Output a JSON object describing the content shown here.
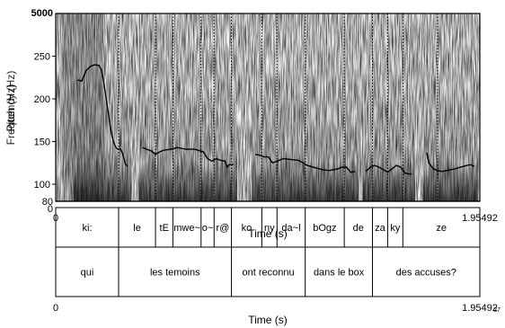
{
  "chart_data": {
    "type": "line",
    "title": "",
    "xlabel": "Time (s)",
    "ylabel": "Pitch (Hz)",
    "ylabel_secondary": "Frequency (Hz)",
    "xlim": [
      0,
      1.95492
    ],
    "ylim": [
      80,
      300
    ],
    "y_ticks": [
      {
        "label": "100",
        "value": 100
      },
      {
        "label": "150",
        "value": 150
      },
      {
        "label": "200",
        "value": 200
      },
      {
        "label": "250",
        "value": 250
      }
    ],
    "y_extra_labels": {
      "bottom_min": "0",
      "pitch_floor": "80",
      "spectro_top": "5000"
    },
    "x_ticks": {
      "start": "0",
      "end": "1.95492"
    },
    "series": [
      {
        "segments": [
          [
            [
              0.1,
              222
            ],
            [
              0.12,
              221
            ],
            [
              0.14,
              233
            ],
            [
              0.16,
              238
            ],
            [
              0.18,
              240
            ],
            [
              0.2,
              239
            ],
            [
              0.21,
              234
            ],
            [
              0.22,
              222
            ],
            [
              0.23,
              205
            ],
            [
              0.24,
              188
            ],
            [
              0.25,
              170
            ],
            [
              0.26,
              156
            ],
            [
              0.27,
              147
            ],
            [
              0.28,
              142
            ],
            [
              0.29,
              141
            ],
            [
              0.3,
              141
            ],
            [
              0.31,
              135
            ],
            [
              0.32,
              124
            ],
            [
              0.33,
              121
            ]
          ],
          [
            [
              0.4,
              143
            ],
            [
              0.42,
              141
            ],
            [
              0.44,
              139
            ],
            [
              0.46,
              135
            ],
            [
              0.48,
              138
            ],
            [
              0.5,
              140
            ],
            [
              0.53,
              141
            ],
            [
              0.56,
              143
            ],
            [
              0.6,
              141
            ],
            [
              0.64,
              141
            ],
            [
              0.68,
              138
            ],
            [
              0.7,
              130
            ],
            [
              0.72,
              127
            ],
            [
              0.74,
              130
            ],
            [
              0.76,
              128
            ],
            [
              0.78,
              127
            ],
            [
              0.79,
              120
            ],
            [
              0.8,
              123
            ],
            [
              0.82,
              123
            ]
          ],
          [
            [
              0.92,
              135
            ],
            [
              0.94,
              134
            ],
            [
              0.96,
              132
            ],
            [
              0.98,
              132
            ],
            [
              1.0,
              125
            ],
            [
              1.02,
              127
            ],
            [
              1.05,
              130
            ],
            [
              1.08,
              129
            ],
            [
              1.12,
              128
            ],
            [
              1.16,
              122
            ],
            [
              1.2,
              119
            ],
            [
              1.23,
              117
            ],
            [
              1.26,
              116
            ],
            [
              1.28,
              117
            ],
            [
              1.3,
              118
            ],
            [
              1.32,
              120
            ],
            [
              1.34,
              120
            ],
            [
              1.36,
              114
            ],
            [
              1.38,
              115
            ]
          ],
          [
            [
              1.43,
              115
            ],
            [
              1.45,
              120
            ],
            [
              1.47,
              122
            ],
            [
              1.49,
              120
            ],
            [
              1.51,
              117
            ],
            [
              1.53,
              114
            ],
            [
              1.55,
              118
            ],
            [
              1.57,
              122
            ],
            [
              1.59,
              120
            ],
            [
              1.61,
              113
            ],
            [
              1.63,
              112
            ],
            [
              1.64,
              112
            ]
          ],
          [
            [
              1.71,
              137
            ],
            [
              1.72,
              125
            ],
            [
              1.74,
              118
            ],
            [
              1.76,
              116
            ],
            [
              1.78,
              115
            ],
            [
              1.8,
              116
            ],
            [
              1.84,
              118
            ],
            [
              1.88,
              121
            ],
            [
              1.91,
              123
            ],
            [
              1.93,
              121
            ]
          ]
        ]
      }
    ],
    "boundaries": [
      0.29,
      0.46,
      0.54,
      0.67,
      0.73,
      0.81,
      0.95,
      1.02,
      1.15,
      1.33,
      1.46,
      1.53,
      1.6,
      1.76
    ],
    "word_boundaries": [
      0.29,
      0.81,
      1.15,
      1.46
    ]
  },
  "tiers": {
    "phones": [
      {
        "text": "ki:",
        "start": 0.0,
        "end": 0.29
      },
      {
        "text": "le",
        "start": 0.29,
        "end": 0.46
      },
      {
        "text": "tE",
        "start": 0.46,
        "end": 0.54
      },
      {
        "text": "mwe~",
        "start": 0.54,
        "end": 0.67
      },
      {
        "text": "o~",
        "start": 0.67,
        "end": 0.73
      },
      {
        "text": "r@",
        "start": 0.73,
        "end": 0.81
      },
      {
        "text": "ko",
        "start": 0.81,
        "end": 0.95
      },
      {
        "text": "ny",
        "start": 0.95,
        "end": 1.02
      },
      {
        "text": "da~l",
        "start": 1.02,
        "end": 1.15
      },
      {
        "text": "bOgz",
        "start": 1.15,
        "end": 1.33
      },
      {
        "text": "de",
        "start": 1.33,
        "end": 1.46
      },
      {
        "text": "za",
        "start": 1.46,
        "end": 1.53
      },
      {
        "text": "ky",
        "start": 1.53,
        "end": 1.6
      },
      {
        "text": "ze",
        "start": 1.6,
        "end": 1.95492
      }
    ],
    "words": [
      {
        "text": "qui",
        "start": 0.0,
        "end": 0.29
      },
      {
        "text": "les temoins",
        "start": 0.29,
        "end": 0.81
      },
      {
        "text": "ont reconnu",
        "start": 0.81,
        "end": 1.15
      },
      {
        "text": "dans le box",
        "start": 1.15,
        "end": 1.46
      },
      {
        "text": "des accuses?",
        "start": 1.46,
        "end": 1.95492
      }
    ]
  },
  "axis": {
    "time_label": "Time (s)",
    "start": "0",
    "end": "1.95492",
    "corner_mark": "27"
  },
  "colors": {
    "ink": "#000000",
    "spectro_dark": "#1a1a1a"
  }
}
